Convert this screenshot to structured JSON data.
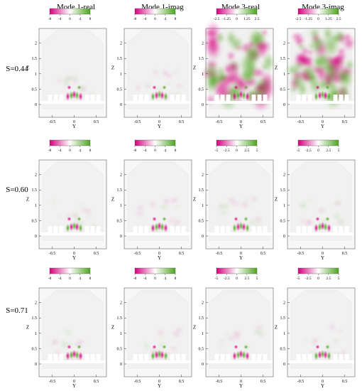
{
  "columns": [
    "Mode 1-real",
    "Mode 1-imag",
    "Mode 3-real",
    "Mode 3-imag"
  ],
  "rows": [
    {
      "label": "S=0.44",
      "colorbars": [
        {
          "ticks": [
            "-8",
            "-4",
            "0",
            "4",
            "8"
          ]
        },
        {
          "ticks": [
            "-8",
            "-4",
            "0",
            "4",
            "8"
          ]
        },
        {
          "ticks": [
            "-2.5",
            "-1.25",
            "0",
            "1.25",
            "2.5"
          ]
        },
        {
          "ticks": [
            "-2.5",
            "-1.25",
            "0",
            "1.25",
            "2.5"
          ]
        }
      ],
      "intensity": [
        0.55,
        0.55,
        1.0,
        1.0
      ]
    },
    {
      "label": "S=0.60",
      "colorbars": [
        {
          "ticks": [
            "-8",
            "-4",
            "0",
            "4",
            "8"
          ]
        },
        {
          "ticks": [
            "-8",
            "-4",
            "0",
            "4",
            "8"
          ]
        },
        {
          "ticks": [
            "-5",
            "-2.5",
            "0",
            "2.5",
            "5"
          ]
        },
        {
          "ticks": [
            "-5",
            "-2.5",
            "0",
            "2.5",
            "5"
          ]
        }
      ],
      "intensity": [
        0.5,
        0.5,
        0.5,
        0.5
      ]
    },
    {
      "label": "S=0.71",
      "colorbars": [
        {
          "ticks": [
            "-8",
            "-4",
            "0",
            "4",
            "8"
          ]
        },
        {
          "ticks": [
            "-8",
            "-4",
            "0",
            "4",
            "8"
          ]
        },
        {
          "ticks": [
            "-5",
            "-2.5",
            "0",
            "2.5",
            "5"
          ]
        },
        {
          "ticks": [
            "-5",
            "-2.5",
            "0",
            "2.5",
            "5"
          ]
        }
      ],
      "intensity": [
        0.5,
        0.5,
        0.5,
        0.5
      ]
    }
  ],
  "axes": {
    "xlabel": "Y",
    "ylabel": "Z",
    "xticks": [
      "-0.5",
      "0",
      "0.5"
    ],
    "yticks": [
      "0",
      "0.5",
      "1",
      "1.5",
      "2"
    ]
  },
  "colormap": {
    "negative": "#d6007f",
    "zero": "#ffffff",
    "positive": "#4ea51e"
  }
}
